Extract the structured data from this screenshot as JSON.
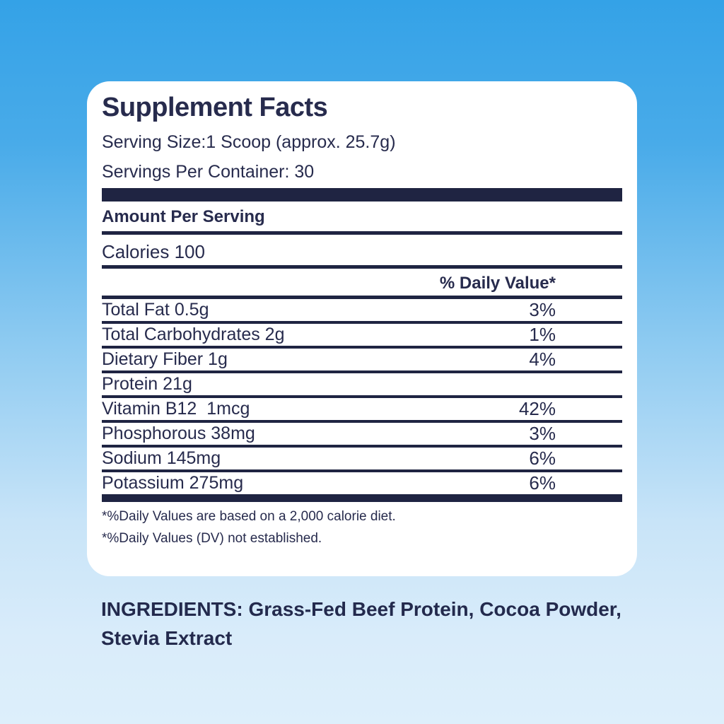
{
  "colors": {
    "background_top": "#34a2e7",
    "background_bottom": "#ddeffb",
    "card_background": "#ffffff",
    "text_navy": "#272b4d",
    "bar_navy": "#1f2442"
  },
  "panel": {
    "title": "Supplement Facts",
    "serving_size": "Serving Size:1 Scoop (approx. 25.7g)",
    "servings_per_container": "Servings Per Container: 30",
    "amount_per_serving": "Amount Per Serving",
    "calories": "Calories 100",
    "daily_value_header": "% Daily Value*",
    "rows": [
      {
        "label": "Total Fat 0.5g",
        "dv": "3%"
      },
      {
        "label": "Total Carbohydrates 2g",
        "dv": "1%"
      },
      {
        "label": "Dietary Fiber 1g",
        "dv": "4%"
      },
      {
        "label": "Protein 21g",
        "dv": ""
      },
      {
        "label": "Vitamin B12  1mcg",
        "dv": "42%"
      },
      {
        "label": "Phosphorous 38mg",
        "dv": "3%"
      },
      {
        "label": "Sodium 145mg",
        "dv": "6%"
      },
      {
        "label": "Potassium 275mg",
        "dv": "6%"
      }
    ],
    "footnotes": [
      "*%Daily Values are based on a 2,000 calorie diet.",
      "*%Daily Values (DV) not established."
    ]
  },
  "ingredients": "INGREDIENTS: Grass-Fed Beef Protein, Cocoa Powder, Stevia Extract"
}
